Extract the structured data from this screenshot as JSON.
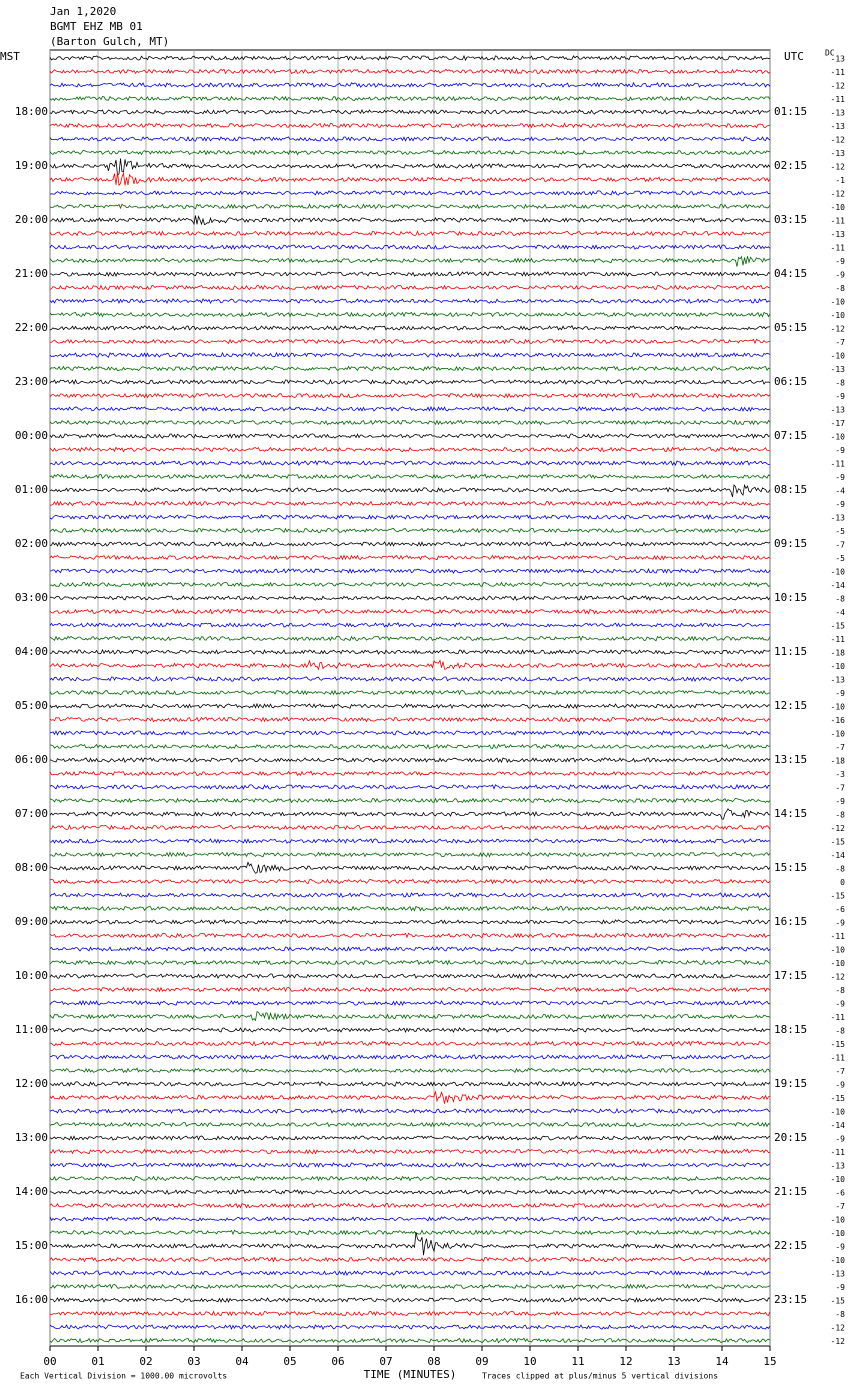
{
  "header": {
    "date": "Jan 1,2020",
    "station": "BGMT EHZ MB 01",
    "location": "(Barton Gulch, MT)"
  },
  "left_zone": "MST",
  "right_zone": "UTC",
  "dc_header": "DC",
  "mst_labels": [
    "18:00",
    "19:00",
    "20:00",
    "21:00",
    "22:00",
    "23:00",
    "00:00",
    "01:00",
    "02:00",
    "03:00",
    "04:00",
    "05:00",
    "06:00",
    "07:00",
    "08:00",
    "09:00",
    "10:00",
    "11:00",
    "12:00",
    "13:00",
    "14:00",
    "15:00",
    "16:00"
  ],
  "utc_labels": [
    "01:15",
    "02:15",
    "03:15",
    "04:15",
    "05:15",
    "06:15",
    "07:15",
    "08:15",
    "09:15",
    "10:15",
    "11:15",
    "12:15",
    "13:15",
    "14:15",
    "15:15",
    "16:15",
    "17:15",
    "18:15",
    "19:15",
    "20:15",
    "21:15",
    "22:15",
    "23:15"
  ],
  "dc_offsets": [
    -13,
    -11,
    -12,
    -11,
    -13,
    -13,
    -12,
    -13,
    -12,
    -1,
    -12,
    -10,
    -11,
    -13,
    -11,
    -9,
    -9,
    -8,
    -10,
    -10,
    -12,
    -7,
    -10,
    -13,
    -8,
    -9,
    -13,
    -17,
    -10,
    -9,
    -11,
    -9,
    -4,
    -9,
    -13,
    -5,
    -7,
    -5,
    -10,
    -14,
    -8,
    -4,
    -15,
    -11,
    -18,
    -10,
    -13,
    -9,
    -10,
    -16,
    -10,
    -7,
    -18,
    -3,
    -7,
    -9,
    -8,
    -12,
    -15,
    -14,
    -8,
    0,
    -15,
    -6,
    -9,
    -11,
    -10,
    -10,
    -12,
    -8,
    -9,
    -11,
    -8,
    -15,
    -11,
    -7,
    -9,
    -15,
    -10,
    -14,
    -9,
    -11,
    -13,
    -10,
    -6,
    -7,
    -10,
    -10,
    -9,
    -10,
    -13,
    -9,
    -15,
    -8,
    -12,
    -12
  ],
  "x_ticks": [
    "00",
    "01",
    "02",
    "03",
    "04",
    "05",
    "06",
    "07",
    "08",
    "09",
    "10",
    "11",
    "12",
    "13",
    "14",
    "15"
  ],
  "x_label": "TIME (MINUTES)",
  "footer_left": "Each Vertical Division = 1000.00 microvolts",
  "footer_right": "Traces clipped at plus/minus 5 vertical divisions"
}
